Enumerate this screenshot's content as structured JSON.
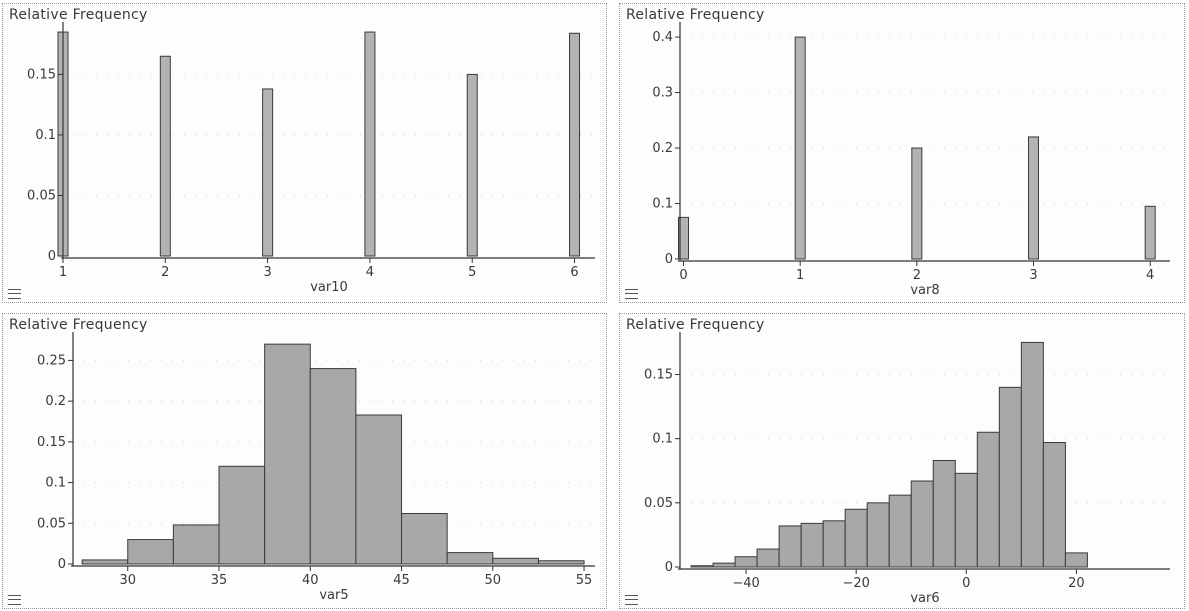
{
  "chart_data": [
    {
      "type": "bar",
      "ylabel": "Relative Frequency",
      "xlabel": "var10",
      "xlim": [
        1,
        6.2
      ],
      "ylim": [
        0,
        0.19
      ],
      "xticks": [
        1,
        2,
        3,
        4,
        5,
        6
      ],
      "yticks": [
        0,
        0.05,
        0.1,
        0.15
      ],
      "x": [
        1,
        2,
        3,
        4,
        5,
        6
      ],
      "values": [
        0.185,
        0.165,
        0.138,
        0.185,
        0.15,
        0.184
      ],
      "bar_style": "thin",
      "color": "#b3b3b3"
    },
    {
      "type": "bar",
      "ylabel": "Relative Frequency",
      "xlabel": "var8",
      "xlim": [
        -0.03,
        4.17
      ],
      "ylim": [
        0,
        0.42
      ],
      "xticks": [
        0,
        1,
        2,
        3,
        4
      ],
      "yticks": [
        0,
        0.1,
        0.2,
        0.3,
        0.4
      ],
      "x": [
        0,
        1,
        2,
        3,
        4
      ],
      "values": [
        0.075,
        0.4,
        0.2,
        0.22,
        0.095
      ],
      "bar_style": "thin",
      "color": "#b3b3b3"
    },
    {
      "type": "bar",
      "ylabel": "Relative Frequency",
      "xlabel": "var5",
      "xlim": [
        27,
        55.6
      ],
      "ylim": [
        0,
        0.28
      ],
      "xticks": [
        30,
        35,
        40,
        45,
        50,
        55
      ],
      "yticks": [
        0,
        0.05,
        0.1,
        0.15,
        0.2,
        0.25
      ],
      "bins": [
        [
          27.5,
          30,
          0.005
        ],
        [
          30,
          32.5,
          0.03
        ],
        [
          32.5,
          35,
          0.048
        ],
        [
          35,
          37.5,
          0.12
        ],
        [
          37.5,
          40,
          0.27
        ],
        [
          40,
          42.5,
          0.24
        ],
        [
          42.5,
          45,
          0.183
        ],
        [
          45,
          47.5,
          0.062
        ],
        [
          47.5,
          50,
          0.014
        ],
        [
          50,
          52.5,
          0.007
        ],
        [
          52.5,
          55,
          0.004
        ]
      ],
      "bar_style": "histogram",
      "color": "#a8a8a8"
    },
    {
      "type": "bar",
      "ylabel": "Relative Frequency",
      "xlabel": "var6",
      "xlim": [
        -52,
        37
      ],
      "ylim": [
        0,
        0.18
      ],
      "xticks": [
        -40,
        -20,
        0,
        20
      ],
      "yticks": [
        0,
        0.05,
        0.1,
        0.15
      ],
      "bins": [
        [
          -50,
          -46,
          0.001
        ],
        [
          -46,
          -42,
          0.003
        ],
        [
          -42,
          -38,
          0.008
        ],
        [
          -38,
          -34,
          0.014
        ],
        [
          -34,
          -30,
          0.032
        ],
        [
          -30,
          -26,
          0.034
        ],
        [
          -26,
          -22,
          0.036
        ],
        [
          -22,
          -18,
          0.045
        ],
        [
          -18,
          -14,
          0.05
        ],
        [
          -14,
          -10,
          0.056
        ],
        [
          -10,
          -6,
          0.067
        ],
        [
          -6,
          -2,
          0.083
        ],
        [
          -2,
          2,
          0.073
        ],
        [
          2,
          6,
          0.105
        ],
        [
          6,
          10,
          0.14
        ],
        [
          10,
          14,
          0.175
        ],
        [
          14,
          18,
          0.097
        ],
        [
          18,
          22,
          0.011
        ]
      ],
      "bar_style": "histogram",
      "color": "#a8a8a8"
    }
  ]
}
